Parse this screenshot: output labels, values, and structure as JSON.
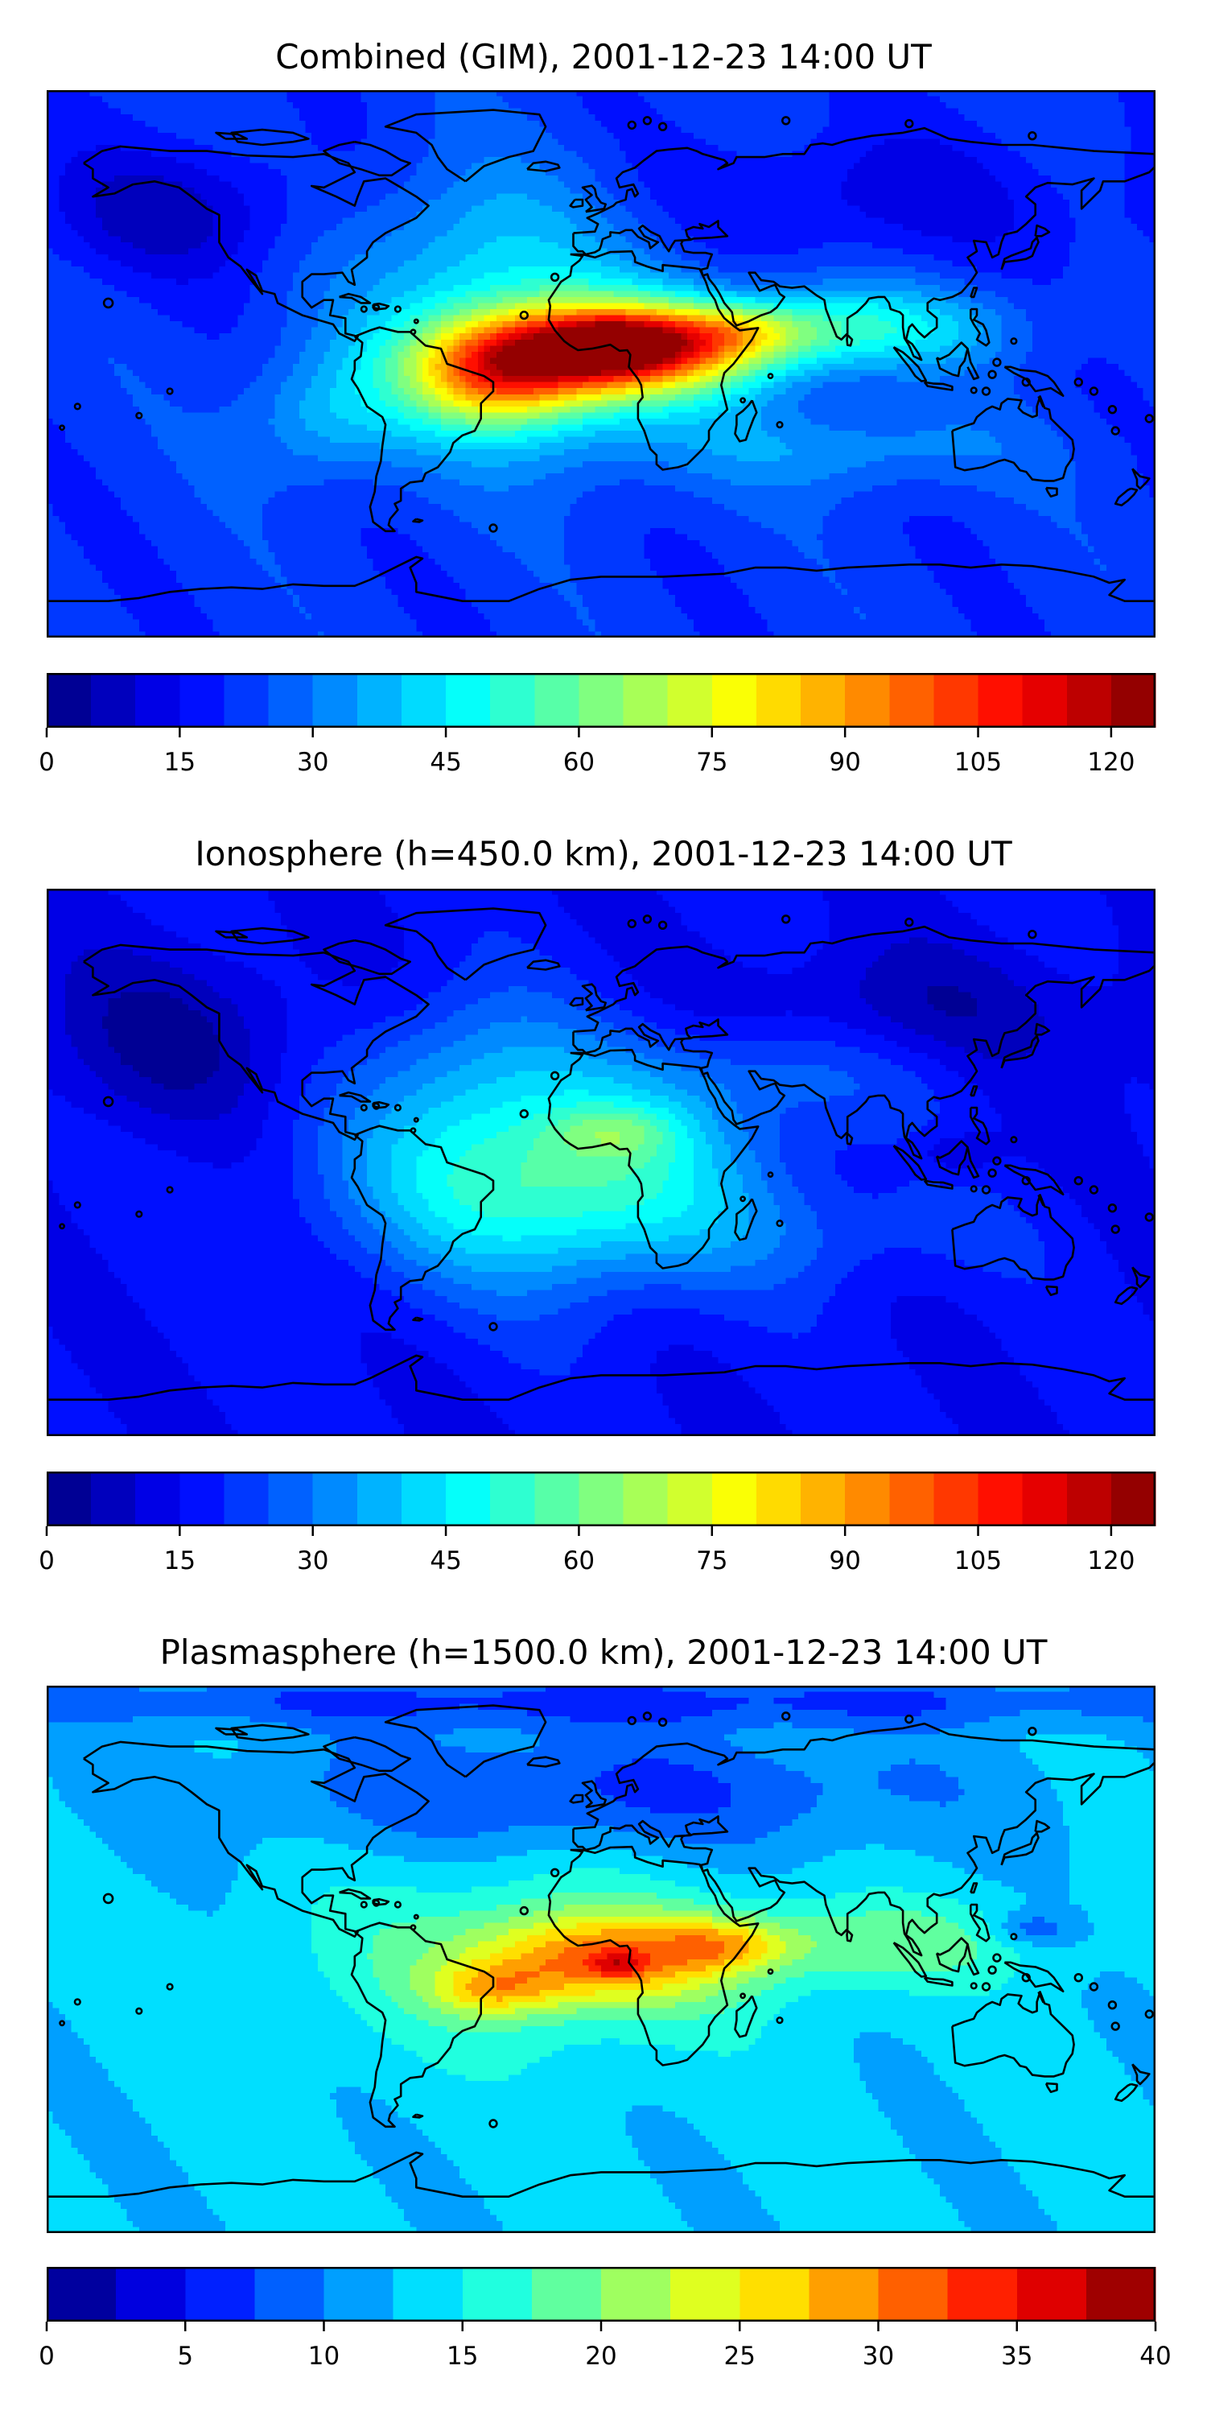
{
  "chart_data": [
    {
      "type": "heatmap",
      "title": "Combined (GIM), 2001-12-23 14:00 UT",
      "colorbar": {
        "min": 0,
        "max": 125,
        "step": 5,
        "ticks": [
          0,
          15,
          30,
          45,
          60,
          75,
          90,
          105,
          120
        ]
      },
      "xlabel": "",
      "ylabel": "",
      "field": {
        "base": 22,
        "blobs": [
          {
            "lon": 5,
            "lat": 5,
            "sx": 32,
            "sy": 10,
            "amp": 85
          },
          {
            "lon": 5,
            "lat": 7,
            "sx": 11,
            "sy": 5,
            "amp": 18
          },
          {
            "lon": -35,
            "lat": -5,
            "sx": 20,
            "sy": 11,
            "amp": 40
          },
          {
            "lon": 45,
            "lat": 11,
            "sx": 18,
            "sy": 6,
            "amp": 20
          },
          {
            "lon": -20,
            "lat": 0,
            "sx": 38,
            "sy": 22,
            "amp": 30
          },
          {
            "lon": 85,
            "lat": 12,
            "sx": 32,
            "sy": 10,
            "amp": 25
          },
          {
            "lon": 80,
            "lat": -28,
            "sx": 38,
            "sy": 10,
            "amp": 12
          },
          {
            "lon": -90,
            "lat": -18,
            "sx": 18,
            "sy": 14,
            "amp": 14
          },
          {
            "lon": -40,
            "lat": 40,
            "sx": 28,
            "sy": 20,
            "amp": 14
          },
          {
            "lon": -140,
            "lat": 50,
            "sx": 30,
            "sy": 15,
            "amp": -14
          },
          {
            "lon": 90,
            "lat": 55,
            "sx": 40,
            "sy": 15,
            "amp": -10
          }
        ]
      }
    },
    {
      "type": "heatmap",
      "title": "Ionosphere  (h=450.0 km), 2001-12-23 14:00 UT",
      "colorbar": {
        "min": 0,
        "max": 125,
        "step": 5,
        "ticks": [
          0,
          15,
          30,
          45,
          60,
          75,
          90,
          105,
          120
        ]
      },
      "xlabel": "",
      "ylabel": "",
      "field": {
        "base": 16,
        "blobs": [
          {
            "lon": -15,
            "lat": -5,
            "sx": 45,
            "sy": 24,
            "amp": 42
          },
          {
            "lon": 5,
            "lat": 10,
            "sx": 14,
            "sy": 6,
            "amp": 14
          },
          {
            "lon": -40,
            "lat": 35,
            "sx": 25,
            "sy": 18,
            "amp": 12
          },
          {
            "lon": 60,
            "lat": 30,
            "sx": 35,
            "sy": 12,
            "amp": 10
          },
          {
            "lon": 80,
            "lat": -25,
            "sx": 40,
            "sy": 12,
            "amp": 6
          },
          {
            "lon": -140,
            "lat": 40,
            "sx": 30,
            "sy": 20,
            "amp": -12
          },
          {
            "lon": 100,
            "lat": 50,
            "sx": 40,
            "sy": 15,
            "amp": -10
          },
          {
            "lon": 115,
            "lat": 3,
            "sx": 10,
            "sy": 5,
            "amp": -8
          }
        ]
      }
    },
    {
      "type": "heatmap",
      "title": "Plasmasphere (h=1500.0 km), 2001-12-23 14:00 UT",
      "colorbar": {
        "min": 0,
        "max": 40,
        "step": 2.5,
        "ticks": [
          0,
          5,
          10,
          15,
          20,
          25,
          30,
          35,
          40
        ]
      },
      "xlabel": "",
      "ylabel": "",
      "field": {
        "base": 13,
        "blobs": [
          {
            "lon": 0,
            "lat": 0,
            "sx": 28,
            "sy": 10,
            "amp": 13
          },
          {
            "lon": 5,
            "lat": -2,
            "sx": 6,
            "sy": 3,
            "amp": 6
          },
          {
            "lon": 40,
            "lat": 5,
            "sx": 15,
            "sy": 6,
            "amp": 8
          },
          {
            "lon": -35,
            "lat": -10,
            "sx": 14,
            "sy": 6,
            "amp": 8
          },
          {
            "lon": 90,
            "lat": 5,
            "sx": 35,
            "sy": 10,
            "amp": 6
          },
          {
            "lon": -20,
            "lat": 0,
            "sx": 50,
            "sy": 22,
            "amp": 6
          },
          {
            "lon": 0,
            "lat": 55,
            "sx": 80,
            "sy": 15,
            "amp": -6
          },
          {
            "lon": 140,
            "lat": 10,
            "sx": 9,
            "sy": 4,
            "amp": -5
          },
          {
            "lon": 0,
            "lat": 85,
            "sx": 180,
            "sy": 6,
            "amp": -6
          }
        ]
      }
    }
  ]
}
